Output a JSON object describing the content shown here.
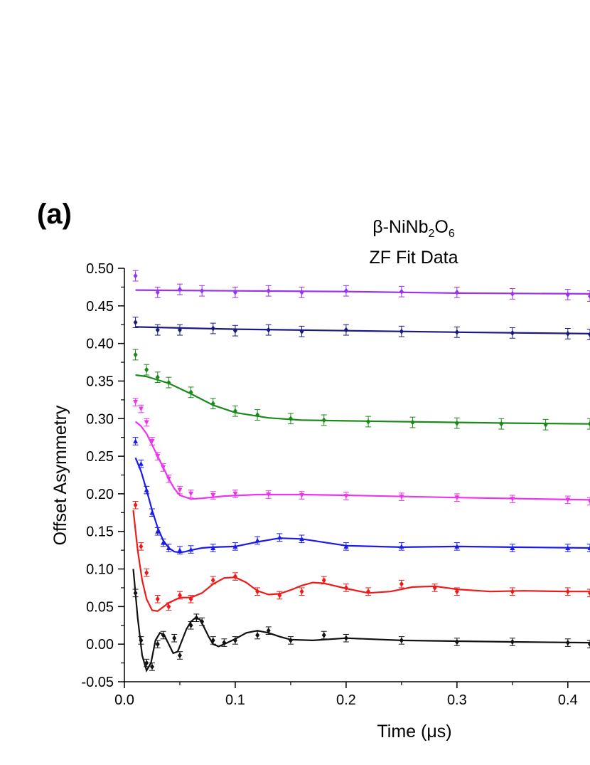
{
  "panel_label": "(a)",
  "title_line1": {
    "prefix": "β-NiNb",
    "sub1": "2",
    "mid": "O",
    "sub2": "6"
  },
  "title_line2": "ZF Fit Data",
  "chart_data": {
    "type": "scatter",
    "subtype": "muSR asymmetry with fit lines and error bars",
    "xlabel": "Time (μs)",
    "ylabel": "Offset Asymmetry",
    "xlim": [
      0.0,
      0.42
    ],
    "ylim": [
      -0.05,
      0.5
    ],
    "x_ticks": [
      "0.0",
      "0.1",
      "0.2",
      "0.3",
      "0.4"
    ],
    "y_ticks": [
      "-0.05",
      "0.00",
      "0.05",
      "0.10",
      "0.15",
      "0.20",
      "0.25",
      "0.30",
      "0.35",
      "0.40",
      "0.45",
      "0.50"
    ],
    "x_tick_values": [
      0.0,
      0.1,
      0.2,
      0.3,
      0.4
    ],
    "y_tick_values": [
      -0.05,
      0.0,
      0.05,
      0.1,
      0.15,
      0.2,
      0.25,
      0.3,
      0.35,
      0.4,
      0.45,
      0.5
    ],
    "grid": false,
    "series": [
      {
        "color": "#9933ee",
        "marker": "diamond",
        "error": 0.007,
        "x": [
          0.01,
          0.03,
          0.05,
          0.07,
          0.1,
          0.13,
          0.16,
          0.2,
          0.25,
          0.3,
          0.35,
          0.4,
          0.42
        ],
        "y": [
          0.49,
          0.468,
          0.472,
          0.47,
          0.468,
          0.47,
          0.468,
          0.47,
          0.469,
          0.468,
          0.466,
          0.465,
          0.463
        ],
        "fit_x": [
          0.01,
          0.1,
          0.2,
          0.3,
          0.42
        ],
        "fit_y": [
          0.471,
          0.47,
          0.469,
          0.467,
          0.466
        ]
      },
      {
        "color": "#1a1a80",
        "marker": "diamond",
        "error": 0.007,
        "x": [
          0.01,
          0.03,
          0.05,
          0.08,
          0.1,
          0.13,
          0.16,
          0.2,
          0.25,
          0.3,
          0.35,
          0.4,
          0.42
        ],
        "y": [
          0.428,
          0.418,
          0.418,
          0.42,
          0.417,
          0.418,
          0.416,
          0.418,
          0.416,
          0.415,
          0.414,
          0.413,
          0.412
        ],
        "fit_x": [
          0.01,
          0.1,
          0.2,
          0.3,
          0.42
        ],
        "fit_y": [
          0.422,
          0.419,
          0.417,
          0.415,
          0.413
        ]
      },
      {
        "color": "#1a8a1a",
        "marker": "diamond",
        "error": 0.007,
        "x": [
          0.01,
          0.02,
          0.03,
          0.04,
          0.06,
          0.08,
          0.1,
          0.12,
          0.15,
          0.18,
          0.22,
          0.26,
          0.3,
          0.34,
          0.38,
          0.42
        ],
        "y": [
          0.385,
          0.365,
          0.355,
          0.348,
          0.335,
          0.32,
          0.31,
          0.305,
          0.3,
          0.298,
          0.296,
          0.295,
          0.294,
          0.293,
          0.292,
          0.293
        ],
        "fit_x": [
          0.01,
          0.02,
          0.04,
          0.06,
          0.08,
          0.1,
          0.13,
          0.16,
          0.2,
          0.25,
          0.3,
          0.35,
          0.42
        ],
        "fit_y": [
          0.358,
          0.356,
          0.347,
          0.333,
          0.318,
          0.308,
          0.301,
          0.298,
          0.297,
          0.296,
          0.295,
          0.294,
          0.293
        ]
      },
      {
        "color": "#ee33ee",
        "marker": "triangle-down",
        "error": 0.005,
        "x": [
          0.01,
          0.015,
          0.02,
          0.025,
          0.03,
          0.035,
          0.04,
          0.05,
          0.06,
          0.08,
          0.1,
          0.13,
          0.16,
          0.2,
          0.25,
          0.3,
          0.35,
          0.4,
          0.42
        ],
        "y": [
          0.322,
          0.313,
          0.295,
          0.27,
          0.25,
          0.235,
          0.22,
          0.205,
          0.2,
          0.198,
          0.2,
          0.199,
          0.198,
          0.197,
          0.196,
          0.195,
          0.193,
          0.192,
          0.19
        ],
        "fit_x": [
          0.01,
          0.015,
          0.02,
          0.025,
          0.03,
          0.035,
          0.04,
          0.045,
          0.05,
          0.06,
          0.07,
          0.09,
          0.12,
          0.16,
          0.2,
          0.3,
          0.42
        ],
        "fit_y": [
          0.296,
          0.29,
          0.28,
          0.265,
          0.25,
          0.235,
          0.22,
          0.207,
          0.198,
          0.193,
          0.194,
          0.197,
          0.199,
          0.199,
          0.198,
          0.195,
          0.192
        ]
      },
      {
        "color": "#1a1aee",
        "marker": "triangle-up",
        "error": 0.005,
        "x": [
          0.01,
          0.015,
          0.02,
          0.025,
          0.03,
          0.035,
          0.04,
          0.05,
          0.06,
          0.08,
          0.1,
          0.12,
          0.14,
          0.16,
          0.2,
          0.25,
          0.3,
          0.35,
          0.4,
          0.42
        ],
        "y": [
          0.27,
          0.24,
          0.205,
          0.175,
          0.15,
          0.135,
          0.128,
          0.125,
          0.126,
          0.128,
          0.13,
          0.138,
          0.142,
          0.14,
          0.13,
          0.13,
          0.13,
          0.128,
          0.128,
          0.128
        ],
        "fit_x": [
          0.01,
          0.015,
          0.02,
          0.025,
          0.03,
          0.035,
          0.04,
          0.045,
          0.05,
          0.055,
          0.06,
          0.07,
          0.08,
          0.1,
          0.12,
          0.14,
          0.16,
          0.2,
          0.25,
          0.3,
          0.35,
          0.42
        ],
        "fit_y": [
          0.248,
          0.23,
          0.205,
          0.178,
          0.155,
          0.138,
          0.128,
          0.123,
          0.122,
          0.123,
          0.125,
          0.128,
          0.129,
          0.13,
          0.136,
          0.141,
          0.14,
          0.131,
          0.129,
          0.13,
          0.129,
          0.128
        ]
      },
      {
        "color": "#ee1a1a",
        "marker": "diamond",
        "error": 0.005,
        "x": [
          0.01,
          0.015,
          0.02,
          0.03,
          0.04,
          0.05,
          0.06,
          0.08,
          0.1,
          0.12,
          0.14,
          0.16,
          0.18,
          0.2,
          0.22,
          0.25,
          0.28,
          0.3,
          0.35,
          0.4,
          0.42
        ],
        "y": [
          0.185,
          0.13,
          0.095,
          0.06,
          0.05,
          0.065,
          0.06,
          0.085,
          0.09,
          0.07,
          0.065,
          0.07,
          0.085,
          0.075,
          0.07,
          0.08,
          0.075,
          0.07,
          0.07,
          0.07,
          0.068
        ],
        "fit_x": [
          0.008,
          0.012,
          0.016,
          0.02,
          0.025,
          0.03,
          0.04,
          0.05,
          0.06,
          0.07,
          0.08,
          0.09,
          0.1,
          0.11,
          0.12,
          0.13,
          0.14,
          0.15,
          0.16,
          0.17,
          0.18,
          0.2,
          0.22,
          0.24,
          0.26,
          0.28,
          0.3,
          0.33,
          0.36,
          0.4,
          0.42
        ],
        "fit_y": [
          0.178,
          0.125,
          0.085,
          0.06,
          0.045,
          0.044,
          0.055,
          0.062,
          0.062,
          0.068,
          0.08,
          0.088,
          0.089,
          0.082,
          0.071,
          0.066,
          0.067,
          0.072,
          0.078,
          0.082,
          0.081,
          0.074,
          0.068,
          0.07,
          0.076,
          0.077,
          0.073,
          0.07,
          0.071,
          0.07,
          0.07
        ]
      },
      {
        "color": "#111111",
        "marker": "diamond",
        "error": 0.005,
        "x": [
          0.01,
          0.015,
          0.02,
          0.025,
          0.03,
          0.035,
          0.045,
          0.05,
          0.06,
          0.065,
          0.07,
          0.08,
          0.09,
          0.1,
          0.12,
          0.13,
          0.15,
          0.18,
          0.2,
          0.25,
          0.3,
          0.35,
          0.4,
          0.42
        ],
        "y": [
          0.068,
          0.005,
          -0.025,
          -0.03,
          0.0,
          0.012,
          0.008,
          -0.015,
          0.025,
          0.035,
          0.03,
          0.005,
          0.002,
          0.005,
          0.012,
          0.018,
          0.005,
          0.012,
          0.008,
          0.005,
          0.003,
          0.003,
          0.002,
          0.0
        ],
        "fit_x": [
          0.008,
          0.012,
          0.016,
          0.02,
          0.024,
          0.028,
          0.032,
          0.036,
          0.04,
          0.044,
          0.048,
          0.052,
          0.056,
          0.06,
          0.064,
          0.068,
          0.072,
          0.076,
          0.08,
          0.085,
          0.09,
          0.1,
          0.11,
          0.12,
          0.13,
          0.14,
          0.15,
          0.17,
          0.2,
          0.25,
          0.3,
          0.35,
          0.42
        ],
        "fit_y": [
          0.1,
          0.035,
          -0.015,
          -0.035,
          -0.025,
          0.005,
          0.015,
          0.012,
          0.0,
          -0.012,
          -0.01,
          0.005,
          0.02,
          0.03,
          0.035,
          0.033,
          0.022,
          0.01,
          0.0,
          -0.003,
          0.0,
          0.007,
          0.015,
          0.018,
          0.015,
          0.01,
          0.006,
          0.005,
          0.008,
          0.005,
          0.004,
          0.003,
          0.002
        ]
      }
    ]
  }
}
